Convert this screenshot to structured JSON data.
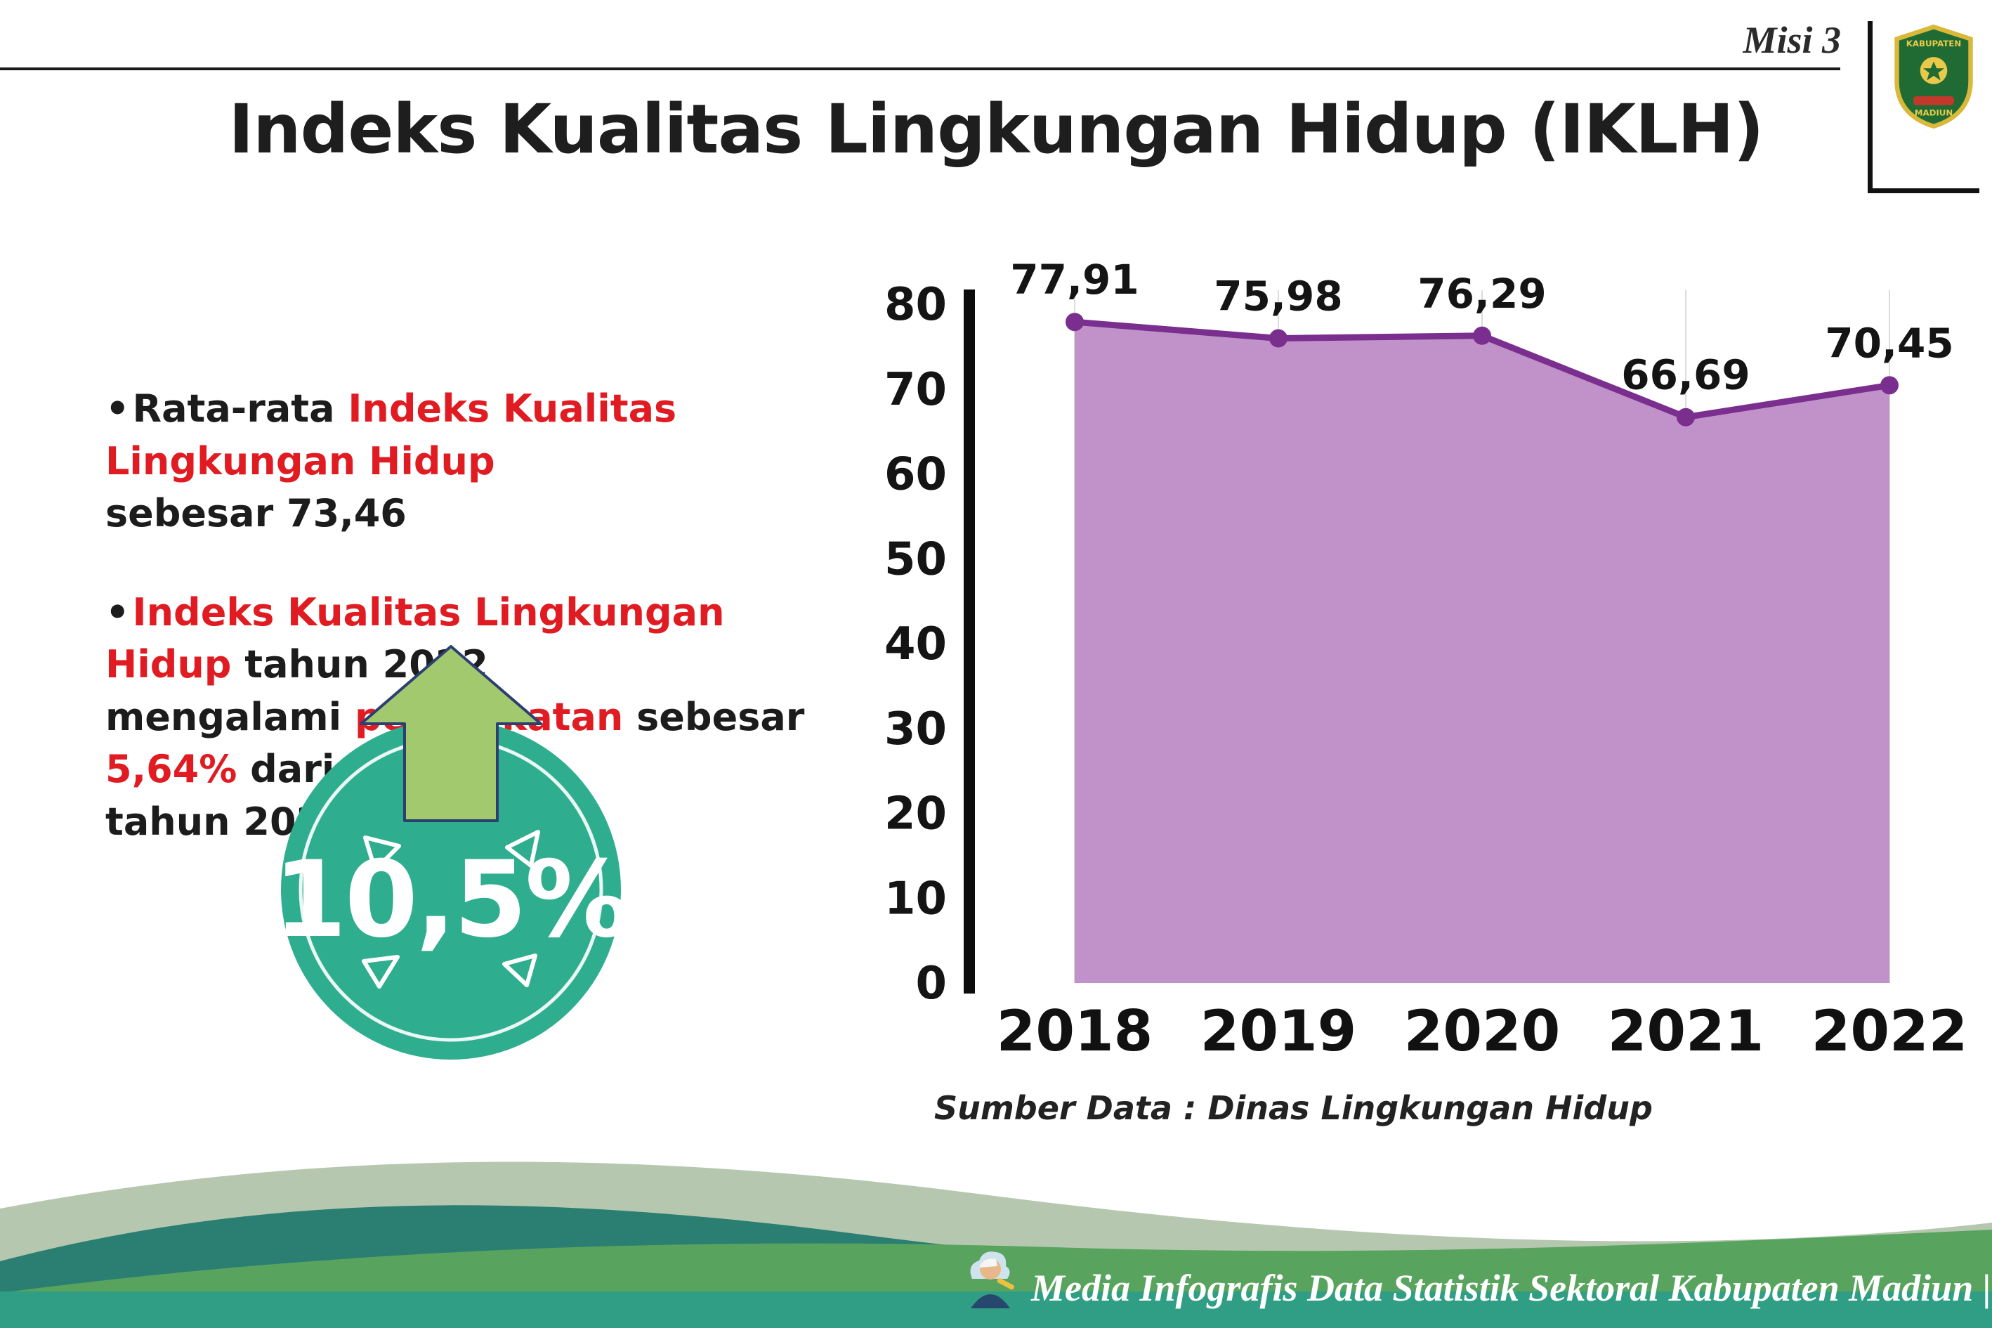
{
  "header": {
    "misi_label": "Misi 3",
    "title": "Indeks Kualitas Lingkungan Hidup (IKLH)",
    "logo_text": "KABUPATEN MADIUN"
  },
  "bullets": [
    {
      "bullet": "•",
      "segments": [
        {
          "text": "Rata-rata ",
          "color": "dark"
        },
        {
          "text": "Indeks Kualitas Lingkungan Hidup",
          "color": "red"
        },
        {
          "text": "\nsebesar 73,46",
          "color": "dark"
        }
      ]
    },
    {
      "bullet": "•",
      "segments": [
        {
          "text": "Indeks Kualitas Lingkungan Hidup",
          "color": "red"
        },
        {
          "text": " tahun 2022\nmengalami ",
          "color": "dark"
        },
        {
          "text": "peningkatan",
          "color": "red"
        },
        {
          "text": " sebesar ",
          "color": "dark"
        },
        {
          "text": "5,64%",
          "color": "red"
        },
        {
          "text": " dari\ntahun 2021",
          "color": "dark"
        }
      ]
    }
  ],
  "badge": {
    "value": "10,5%"
  },
  "chart_data": {
    "type": "area",
    "categories": [
      "2018",
      "2019",
      "2020",
      "2021",
      "2022"
    ],
    "values": [
      77.91,
      75.98,
      76.29,
      66.69,
      70.45
    ],
    "point_labels": [
      "77,91",
      "75,98",
      "76,29",
      "66,69",
      "70,45"
    ],
    "ylim": [
      0,
      80
    ],
    "ytick_step": 10,
    "grid": "vertical-light",
    "legend": "none",
    "line_color": "#7a2e8e",
    "fill_color": "#c192ca",
    "source_note": "Sumber Data : Dinas Lingkungan Hidup"
  },
  "footer": {
    "credit": "Media Infografis Data Statistik Sektoral Kabupaten Madiun |"
  },
  "icons": {
    "logo": "kabupaten-madiun-logo",
    "mascot": "mascot-icon",
    "arrow": "increase-arrow-icon"
  },
  "colors": {
    "accent_red": "#e01b22",
    "text_dark": "#1c1c1c",
    "chart_line": "#7a2e8e",
    "chart_fill": "#c192ca",
    "badge_teal": "#2fae8f",
    "arrow_green": "#a3c96f",
    "footer_sage": "#b6c7b0",
    "footer_teal": "#2a7f72",
    "footer_green": "#58a45f",
    "footer_strip": "#2f9e85"
  }
}
